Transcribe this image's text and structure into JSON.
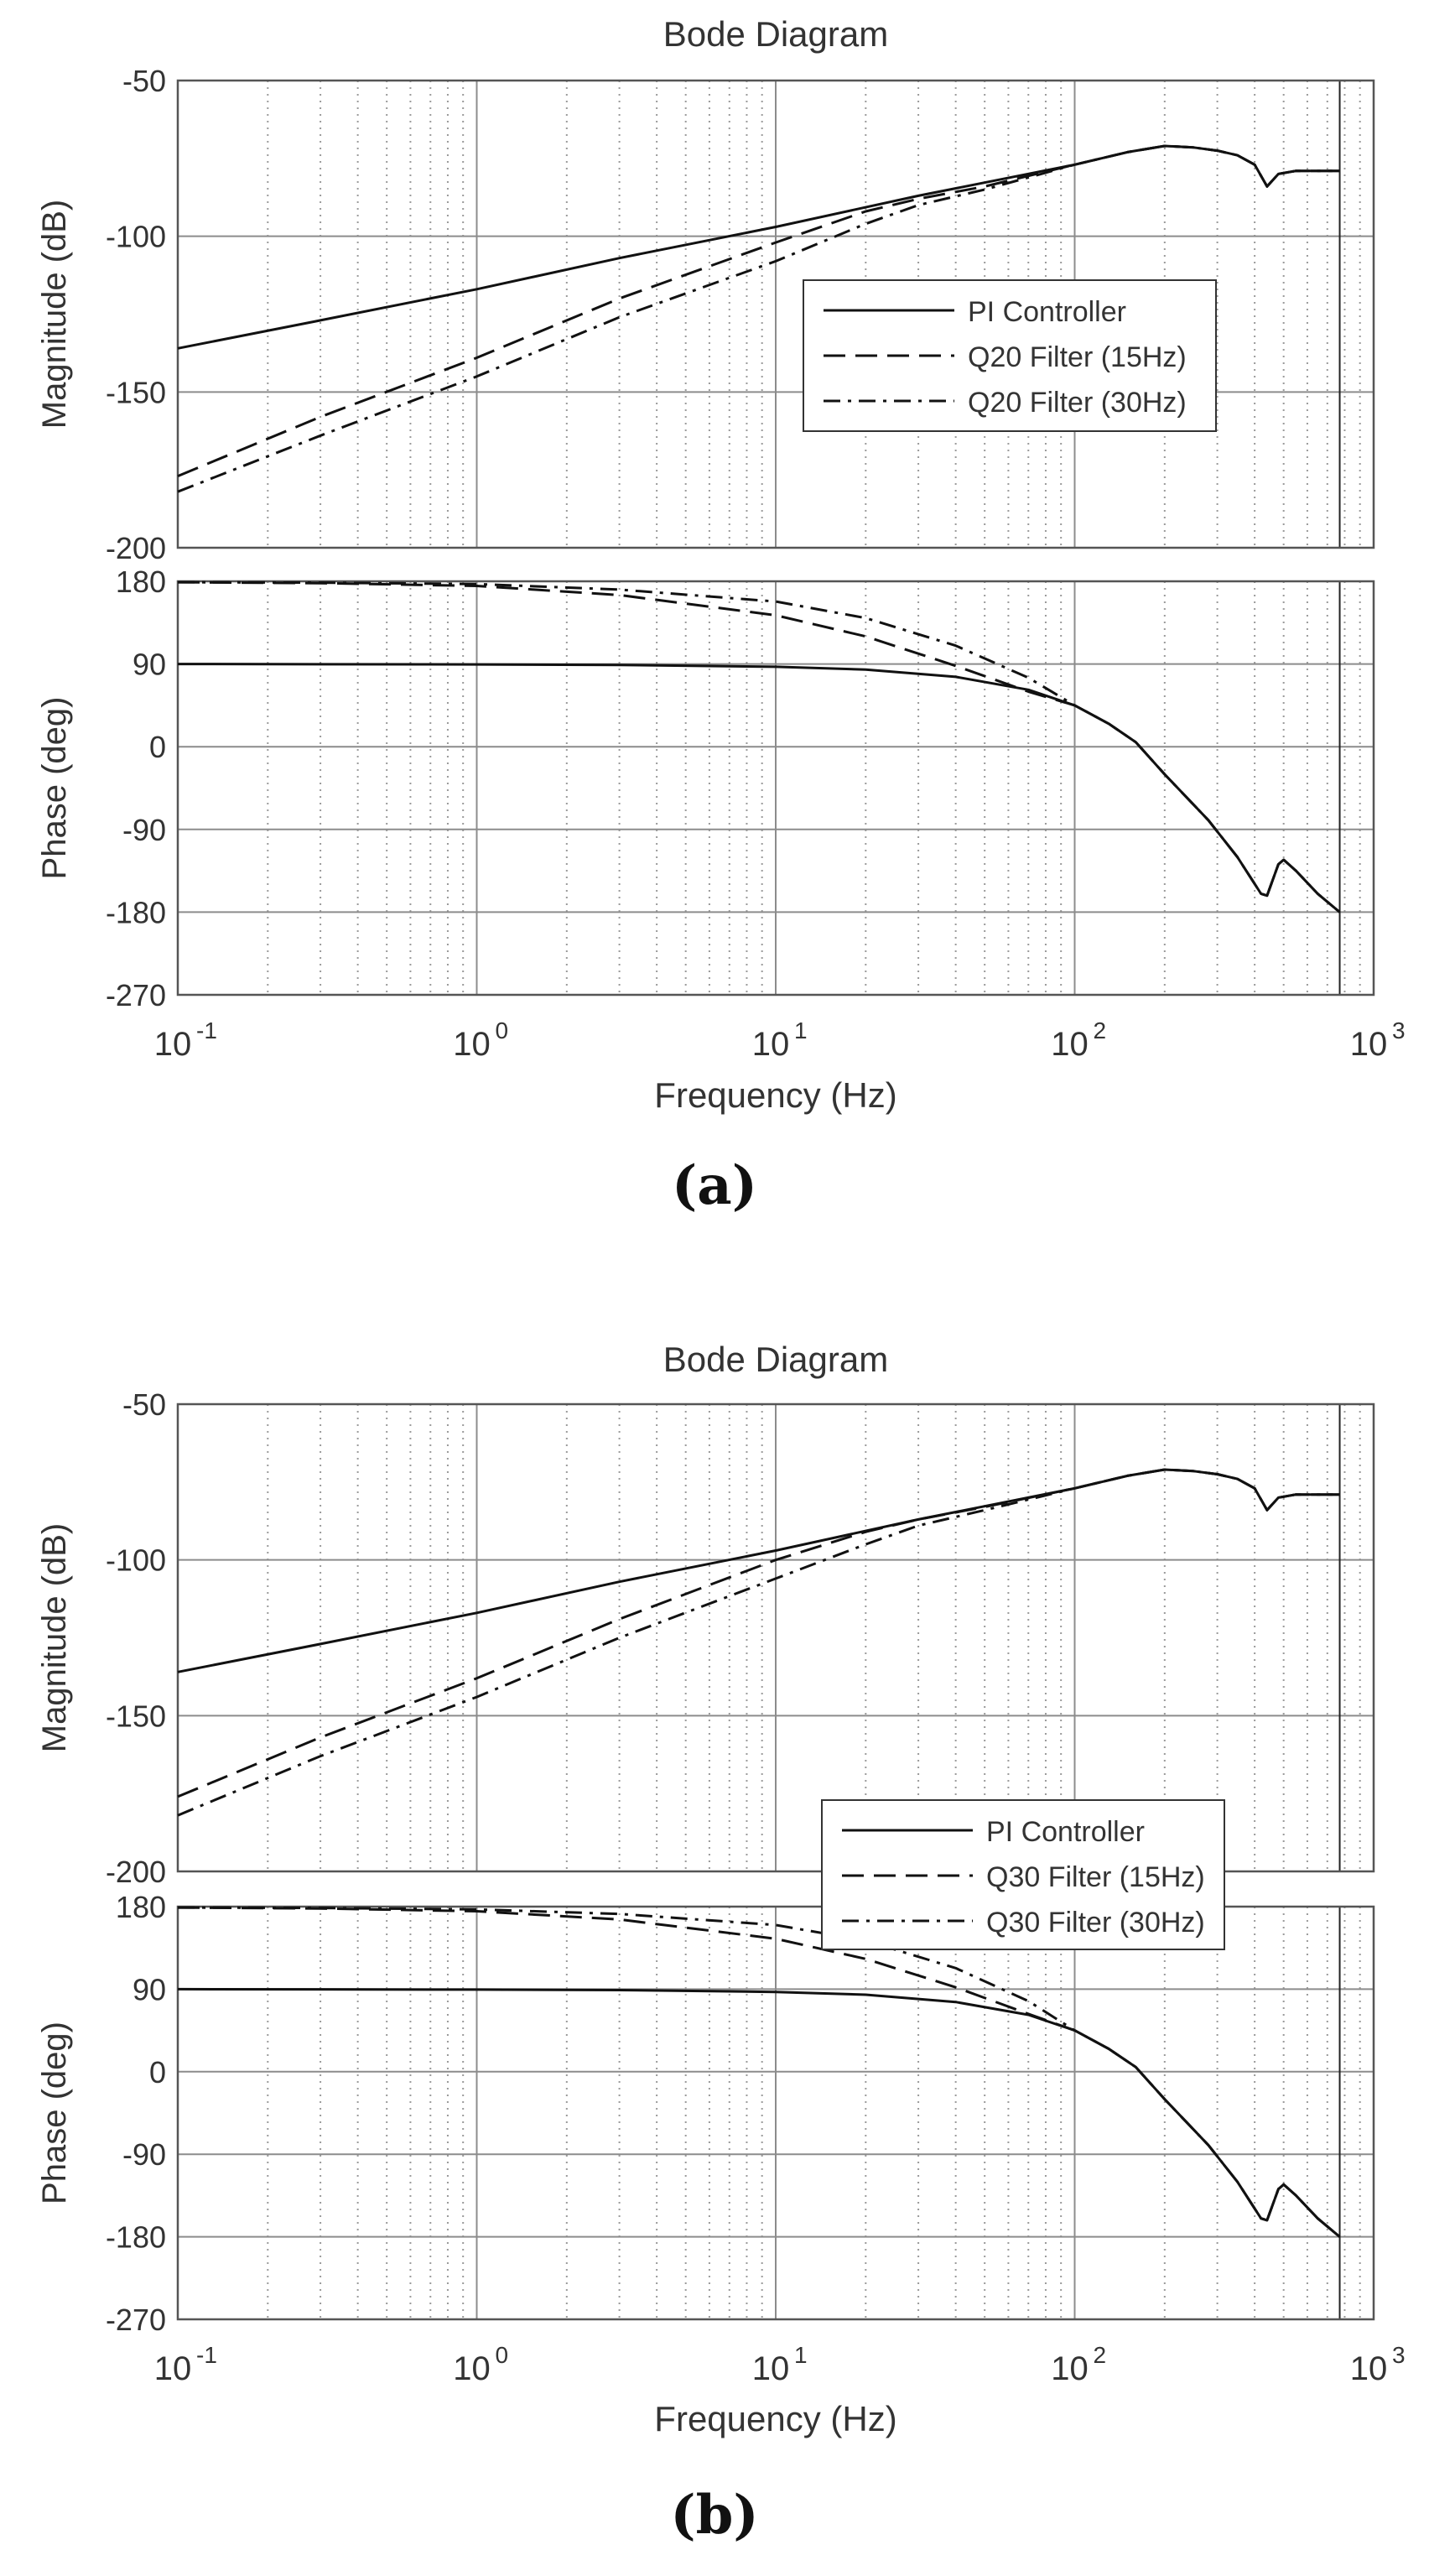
{
  "chart_data": [
    {
      "id": "a",
      "sub_label": "(a)",
      "type": "line",
      "title": "Bode Diagram",
      "xlabel": "Frequency  (Hz)",
      "x_scale": "log",
      "x_ticks": [
        {
          "mant": "10",
          "exp": "-1"
        },
        {
          "mant": "10",
          "exp": "0"
        },
        {
          "mant": "10",
          "exp": "1"
        },
        {
          "mant": "10",
          "exp": "2"
        },
        {
          "mant": "10",
          "exp": "3"
        }
      ],
      "xlim": [
        0.1,
        1000
      ],
      "magnitude": {
        "ylabel": "Magnitude (dB)",
        "ylim": [
          -200,
          -50
        ],
        "y_ticks": [
          "-50",
          "-100",
          "-150",
          "-200"
        ],
        "grid": true
      },
      "phase": {
        "ylabel": "Phase (deg)",
        "ylim": [
          -270,
          180
        ],
        "y_ticks": [
          "180",
          "90",
          "0",
          "-90",
          "-180",
          "-270"
        ],
        "grid": true
      },
      "legend": {
        "placement": "center-right",
        "entries": [
          "PI Controller",
          "Q20 Filter (15Hz)",
          "Q20 Filter (30Hz)"
        ]
      },
      "series": [
        {
          "name": "PI Controller",
          "style": "solid",
          "magnitude": [
            [
              0.1,
              -136
            ],
            [
              0.3,
              -127
            ],
            [
              1,
              -117
            ],
            [
              3,
              -107
            ],
            [
              10,
              -97
            ],
            [
              30,
              -87
            ],
            [
              100,
              -77
            ],
            [
              150,
              -73
            ],
            [
              200,
              -71
            ],
            [
              250,
              -71.5
            ],
            [
              300,
              -72.5
            ],
            [
              350,
              -74
            ],
            [
              400,
              -77
            ],
            [
              440,
              -84
            ],
            [
              480,
              -80
            ],
            [
              550,
              -79
            ],
            [
              700,
              -79
            ],
            [
              770,
              -79
            ]
          ],
          "phase": [
            [
              0.1,
              90
            ],
            [
              1,
              89.5
            ],
            [
              3,
              89
            ],
            [
              10,
              87
            ],
            [
              20,
              84
            ],
            [
              40,
              76
            ],
            [
              70,
              62
            ],
            [
              100,
              45
            ],
            [
              130,
              25
            ],
            [
              160,
              5
            ],
            [
              200,
              -30
            ],
            [
              280,
              -80
            ],
            [
              350,
              -120
            ],
            [
              420,
              -160
            ],
            [
              440,
              -162
            ],
            [
              480,
              -128
            ],
            [
              500,
              -123
            ],
            [
              550,
              -135
            ],
            [
              650,
              -160
            ],
            [
              770,
              -180
            ]
          ]
        },
        {
          "name": "Q20 Filter (15Hz)",
          "style": "dashed",
          "magnitude": [
            [
              0.1,
              -177
            ],
            [
              0.3,
              -158
            ],
            [
              1,
              -139
            ],
            [
              3,
              -120
            ],
            [
              10,
              -102
            ],
            [
              20,
              -92
            ],
            [
              30,
              -88
            ],
            [
              50,
              -84
            ],
            [
              100,
              -77
            ],
            [
              150,
              -73
            ],
            [
              200,
              -71
            ],
            [
              250,
              -71.5
            ],
            [
              300,
              -72.5
            ],
            [
              350,
              -74
            ],
            [
              400,
              -77
            ],
            [
              440,
              -84
            ],
            [
              480,
              -80
            ],
            [
              550,
              -79
            ],
            [
              700,
              -79
            ],
            [
              770,
              -79
            ]
          ],
          "phase": [
            [
              0.1,
              179
            ],
            [
              0.3,
              178
            ],
            [
              1,
              175
            ],
            [
              3,
              165
            ],
            [
              10,
              143
            ],
            [
              20,
              120
            ],
            [
              40,
              88
            ],
            [
              70,
              60
            ],
            [
              100,
              45
            ],
            [
              130,
              25
            ],
            [
              160,
              5
            ],
            [
              200,
              -30
            ],
            [
              280,
              -80
            ],
            [
              350,
              -120
            ],
            [
              420,
              -160
            ],
            [
              440,
              -162
            ],
            [
              480,
              -128
            ],
            [
              500,
              -123
            ],
            [
              550,
              -135
            ],
            [
              650,
              -160
            ],
            [
              770,
              -180
            ]
          ]
        },
        {
          "name": "Q20 Filter (30Hz)",
          "style": "dashdot",
          "magnitude": [
            [
              0.1,
              -182
            ],
            [
              0.3,
              -164
            ],
            [
              1,
              -145
            ],
            [
              3,
              -126
            ],
            [
              10,
              -108
            ],
            [
              20,
              -96
            ],
            [
              30,
              -90
            ],
            [
              50,
              -85
            ],
            [
              100,
              -77
            ],
            [
              150,
              -73
            ],
            [
              200,
              -71
            ],
            [
              250,
              -71.5
            ],
            [
              300,
              -72.5
            ],
            [
              350,
              -74
            ],
            [
              400,
              -77
            ],
            [
              440,
              -84
            ],
            [
              480,
              -80
            ],
            [
              550,
              -79
            ],
            [
              700,
              -79
            ],
            [
              770,
              -79
            ]
          ],
          "phase": [
            [
              0.1,
              179
            ],
            [
              0.3,
              178.5
            ],
            [
              1,
              177
            ],
            [
              3,
              171
            ],
            [
              10,
              158
            ],
            [
              20,
              140
            ],
            [
              40,
              110
            ],
            [
              70,
              75
            ],
            [
              100,
              45
            ],
            [
              130,
              25
            ],
            [
              160,
              5
            ],
            [
              200,
              -30
            ],
            [
              280,
              -80
            ],
            [
              350,
              -120
            ],
            [
              420,
              -160
            ],
            [
              440,
              -162
            ],
            [
              480,
              -128
            ],
            [
              500,
              -123
            ],
            [
              550,
              -135
            ],
            [
              650,
              -160
            ],
            [
              770,
              -180
            ]
          ]
        }
      ]
    },
    {
      "id": "b",
      "sub_label": "(b)",
      "type": "line",
      "title": "Bode Diagram",
      "xlabel": "Frequency  (Hz)",
      "x_scale": "log",
      "x_ticks": [
        {
          "mant": "10",
          "exp": "-1"
        },
        {
          "mant": "10",
          "exp": "0"
        },
        {
          "mant": "10",
          "exp": "1"
        },
        {
          "mant": "10",
          "exp": "2"
        },
        {
          "mant": "10",
          "exp": "3"
        }
      ],
      "xlim": [
        0.1,
        1000
      ],
      "magnitude": {
        "ylabel": "Magnitude (dB)",
        "ylim": [
          -200,
          -50
        ],
        "y_ticks": [
          "-50",
          "-100",
          "-150",
          "-200"
        ],
        "grid": true
      },
      "phase": {
        "ylabel": "Phase (deg)",
        "ylim": [
          -270,
          180
        ],
        "y_ticks": [
          "180",
          "90",
          "0",
          "-90",
          "-180",
          "-270"
        ],
        "grid": true
      },
      "legend": {
        "placement": "center-right",
        "entries": [
          "PI Controller",
          "Q30 Filter (15Hz)",
          "Q30 Filter (30Hz)"
        ]
      },
      "series": [
        {
          "name": "PI Controller",
          "style": "solid",
          "magnitude": [
            [
              0.1,
              -136
            ],
            [
              0.3,
              -127
            ],
            [
              1,
              -117
            ],
            [
              3,
              -107
            ],
            [
              10,
              -97
            ],
            [
              30,
              -87
            ],
            [
              100,
              -77
            ],
            [
              150,
              -73
            ],
            [
              200,
              -71
            ],
            [
              250,
              -71.5
            ],
            [
              300,
              -72.5
            ],
            [
              350,
              -74
            ],
            [
              400,
              -77
            ],
            [
              440,
              -84
            ],
            [
              480,
              -80
            ],
            [
              550,
              -79
            ],
            [
              700,
              -79
            ],
            [
              770,
              -79
            ]
          ],
          "phase": [
            [
              0.1,
              90
            ],
            [
              1,
              89.5
            ],
            [
              3,
              89
            ],
            [
              10,
              87
            ],
            [
              20,
              84
            ],
            [
              40,
              76
            ],
            [
              70,
              62
            ],
            [
              100,
              45
            ],
            [
              130,
              25
            ],
            [
              160,
              5
            ],
            [
              200,
              -30
            ],
            [
              280,
              -80
            ],
            [
              350,
              -120
            ],
            [
              420,
              -160
            ],
            [
              440,
              -162
            ],
            [
              480,
              -128
            ],
            [
              500,
              -123
            ],
            [
              550,
              -135
            ],
            [
              650,
              -160
            ],
            [
              770,
              -180
            ]
          ]
        },
        {
          "name": "Q30 Filter (15Hz)",
          "style": "dashed",
          "magnitude": [
            [
              0.1,
              -176
            ],
            [
              0.3,
              -157
            ],
            [
              1,
              -138
            ],
            [
              3,
              -119
            ],
            [
              10,
              -100
            ],
            [
              20,
              -91
            ],
            [
              30,
              -87
            ],
            [
              50,
              -83
            ],
            [
              100,
              -77
            ],
            [
              150,
              -73
            ],
            [
              200,
              -71
            ],
            [
              250,
              -71.5
            ],
            [
              300,
              -72.5
            ],
            [
              350,
              -74
            ],
            [
              400,
              -77
            ],
            [
              440,
              -84
            ],
            [
              480,
              -80
            ],
            [
              550,
              -79
            ],
            [
              700,
              -79
            ],
            [
              770,
              -79
            ]
          ],
          "phase": [
            [
              0.1,
              179
            ],
            [
              0.3,
              178
            ],
            [
              1,
              175
            ],
            [
              3,
              166
            ],
            [
              10,
              145
            ],
            [
              20,
              123
            ],
            [
              40,
              92
            ],
            [
              70,
              63
            ],
            [
              100,
              45
            ],
            [
              130,
              25
            ],
            [
              160,
              5
            ],
            [
              200,
              -30
            ],
            [
              280,
              -80
            ],
            [
              350,
              -120
            ],
            [
              420,
              -160
            ],
            [
              440,
              -162
            ],
            [
              480,
              -128
            ],
            [
              500,
              -123
            ],
            [
              550,
              -135
            ],
            [
              650,
              -160
            ],
            [
              770,
              -180
            ]
          ]
        },
        {
          "name": "Q30 Filter (30Hz)",
          "style": "dashdot",
          "magnitude": [
            [
              0.1,
              -182
            ],
            [
              0.3,
              -163
            ],
            [
              1,
              -144
            ],
            [
              3,
              -125
            ],
            [
              10,
              -106
            ],
            [
              20,
              -95
            ],
            [
              30,
              -89
            ],
            [
              50,
              -84
            ],
            [
              100,
              -77
            ],
            [
              150,
              -73
            ],
            [
              200,
              -71
            ],
            [
              250,
              -71.5
            ],
            [
              300,
              -72.5
            ],
            [
              350,
              -74
            ],
            [
              400,
              -77
            ],
            [
              440,
              -84
            ],
            [
              480,
              -80
            ],
            [
              550,
              -79
            ],
            [
              700,
              -79
            ],
            [
              770,
              -79
            ]
          ],
          "phase": [
            [
              0.1,
              179
            ],
            [
              0.3,
              178.5
            ],
            [
              1,
              177
            ],
            [
              3,
              172
            ],
            [
              10,
              160
            ],
            [
              20,
              143
            ],
            [
              40,
              113
            ],
            [
              70,
              77
            ],
            [
              100,
              45
            ],
            [
              130,
              25
            ],
            [
              160,
              5
            ],
            [
              200,
              -30
            ],
            [
              280,
              -80
            ],
            [
              350,
              -120
            ],
            [
              420,
              -160
            ],
            [
              440,
              -162
            ],
            [
              480,
              -128
            ],
            [
              500,
              -123
            ],
            [
              550,
              -135
            ],
            [
              650,
              -160
            ],
            [
              770,
              -180
            ]
          ]
        }
      ]
    }
  ]
}
